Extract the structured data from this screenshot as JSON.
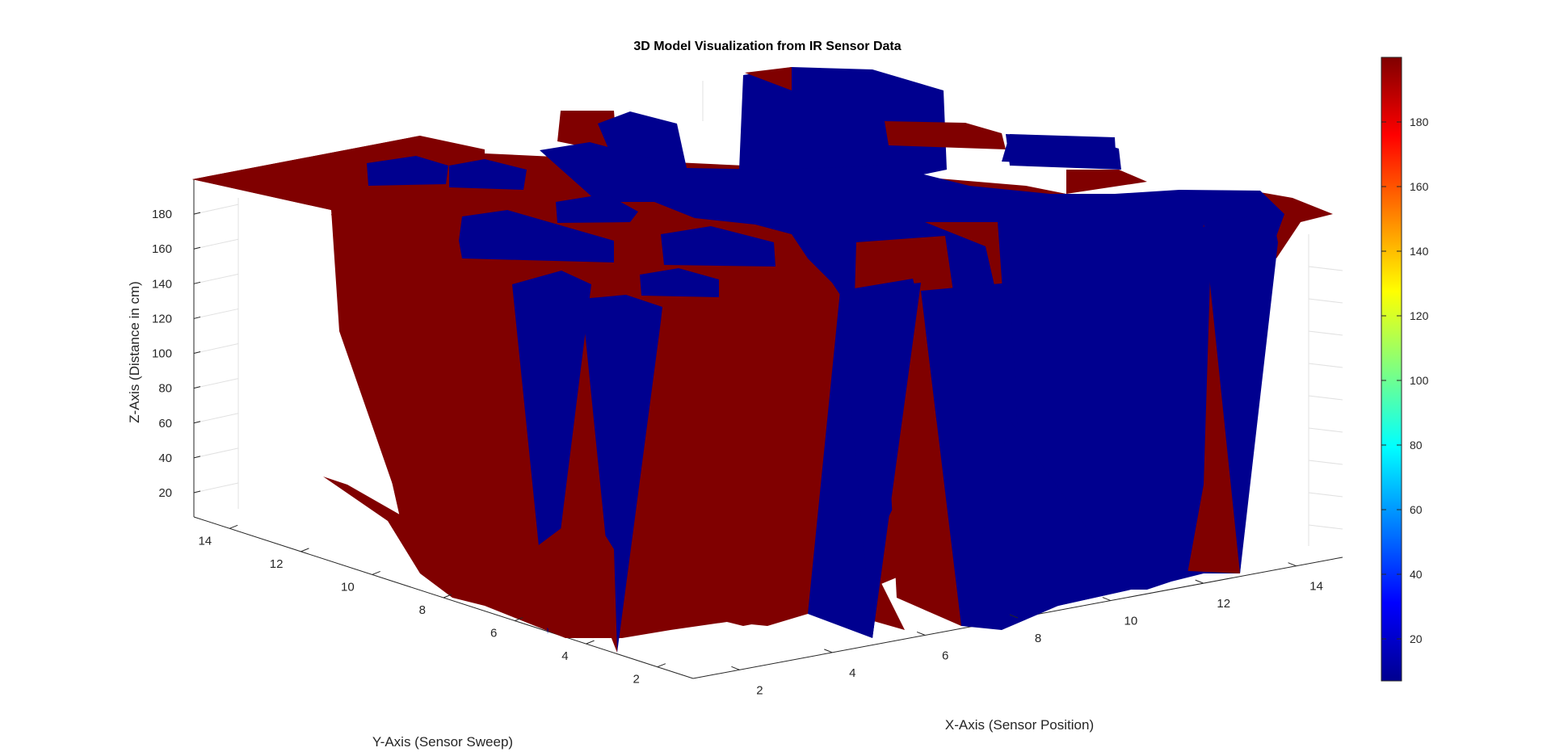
{
  "chart_data": {
    "type": "surface",
    "title": "3D Model Visualization from IR Sensor Data",
    "xlabel": "X-Axis (Sensor Position)",
    "ylabel": "Y-Axis (Sensor Sweep)",
    "zlabel": "Z-Axis (Distance in cm)",
    "xlim": [
      1,
      15
    ],
    "ylim": [
      1,
      15
    ],
    "zlim": [
      7,
      200
    ],
    "x_ticks": [
      "2",
      "4",
      "6",
      "8",
      "10",
      "12",
      "14"
    ],
    "y_ticks": [
      "2",
      "4",
      "6",
      "8",
      "10",
      "12",
      "14"
    ],
    "z_ticks": [
      "20",
      "40",
      "60",
      "80",
      "100",
      "120",
      "140",
      "160",
      "180"
    ],
    "colorbar": {
      "colormap": "jet",
      "clim": [
        7,
        200
      ],
      "ticks": [
        "20",
        "40",
        "60",
        "80",
        "100",
        "120",
        "140",
        "160",
        "180"
      ]
    },
    "grid": true,
    "colors": {
      "low": "#00008f",
      "high": "#800000"
    }
  }
}
